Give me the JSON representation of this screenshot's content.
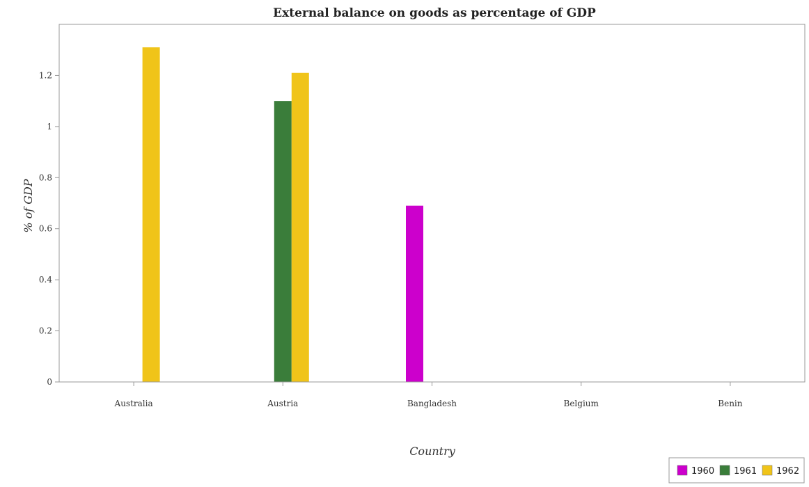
{
  "chart_data": {
    "type": "bar",
    "title": "External balance on goods as percentage of GDP",
    "xlabel": "Country",
    "ylabel": "% of GDP",
    "categories": [
      "Australia",
      "Austria",
      "Bangladesh",
      "Belgium",
      "Benin"
    ],
    "series": [
      {
        "name": "1960",
        "color": "#cc00cc",
        "values": [
          0,
          0,
          0.69,
          0,
          0
        ]
      },
      {
        "name": "1961",
        "color": "#3a7d3a",
        "values": [
          0,
          1.1,
          0,
          0,
          0
        ]
      },
      {
        "name": "1962",
        "color": "#f0c419",
        "values": [
          1.31,
          1.21,
          0,
          0,
          0
        ]
      }
    ],
    "ylim": [
      0,
      1.4
    ],
    "yticks": [
      0,
      0.2,
      0.4,
      0.6,
      0.8,
      1,
      1.2
    ],
    "ytick_labels": [
      "0",
      "0.2",
      "0.4",
      "0.6",
      "0.8",
      "1",
      "1.2"
    ],
    "grid": false,
    "legend_position": "bottom-right"
  }
}
